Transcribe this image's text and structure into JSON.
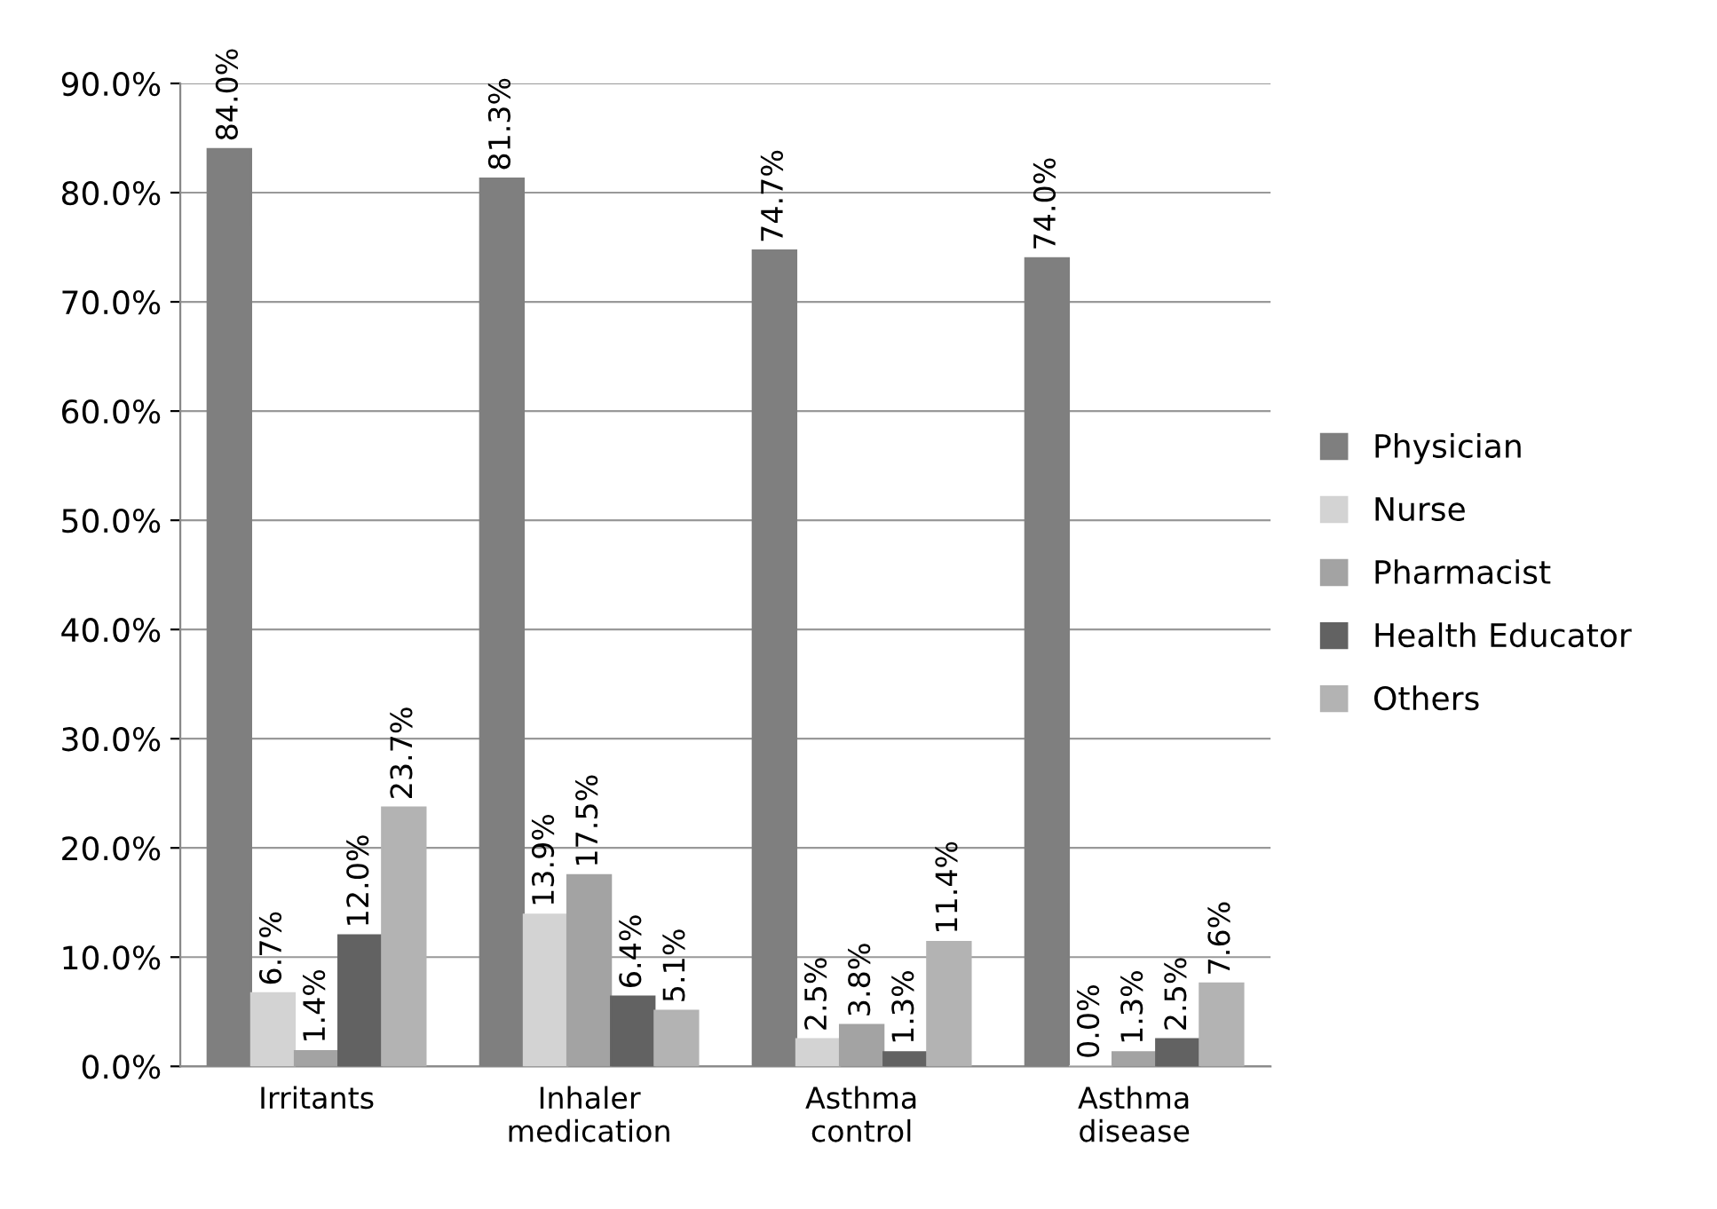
{
  "chart_data": {
    "type": "bar",
    "categories": [
      "Irritants",
      "Inhaler\nmedication",
      "Asthma\ncontrol",
      "Asthma\ndisease"
    ],
    "series": [
      {
        "name": "Physician",
        "color": "#7f7f7f",
        "values": [
          84.0,
          81.3,
          74.7,
          74.0
        ],
        "value_labels": [
          "84.0%",
          "81.3%",
          "74.7%",
          "74.0%"
        ]
      },
      {
        "name": "Nurse",
        "color": "#d3d3d3",
        "values": [
          6.7,
          13.9,
          2.5,
          0.0
        ],
        "value_labels": [
          "6.7%",
          "13.9%",
          "2.5%",
          "0.0%"
        ]
      },
      {
        "name": "Pharmacist",
        "color": "#a3a3a3",
        "values": [
          1.4,
          17.5,
          3.8,
          1.3
        ],
        "value_labels": [
          "1.4%",
          "17.5%",
          "3.8%",
          "1.3%"
        ]
      },
      {
        "name": "Health Educator",
        "color": "#626262",
        "values": [
          12.0,
          6.4,
          1.3,
          2.5
        ],
        "value_labels": [
          "12.0%",
          "6.4%",
          "1.3%",
          "2.5%"
        ]
      },
      {
        "name": "Others",
        "color": "#b3b3b3",
        "values": [
          23.7,
          5.1,
          11.4,
          7.6
        ],
        "value_labels": [
          "23.7%",
          "5.1%",
          "11.4%",
          "7.6%"
        ]
      }
    ],
    "ylim": [
      0,
      90
    ],
    "yticks": [
      {
        "value": 0,
        "label": "0.0%"
      },
      {
        "value": 10,
        "label": "10.0%"
      },
      {
        "value": 20,
        "label": "20.0%"
      },
      {
        "value": 30,
        "label": "30.0%"
      },
      {
        "value": 40,
        "label": "40.0%"
      },
      {
        "value": 50,
        "label": "50.0%"
      },
      {
        "value": 60,
        "label": "60.0%"
      },
      {
        "value": 70,
        "label": "70.0%"
      },
      {
        "value": 80,
        "label": "80.0%"
      },
      {
        "value": 90,
        "label": "90.0%"
      }
    ],
    "grid": "y",
    "legend": "right"
  }
}
